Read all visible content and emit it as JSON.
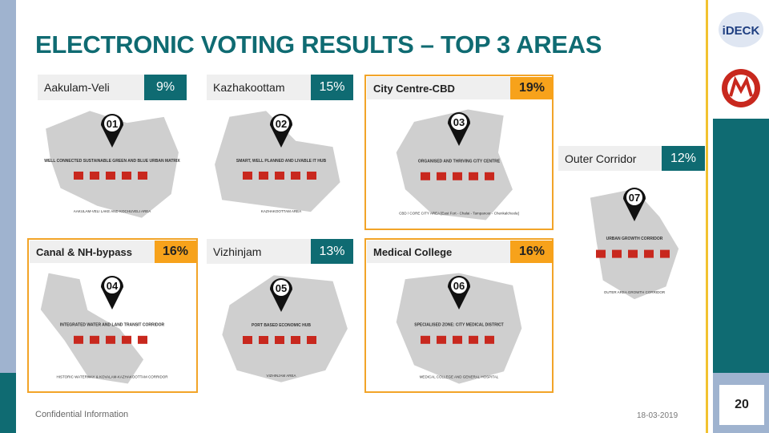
{
  "header": {
    "title": "ELECTRONIC VOTING RESULTS – TOP 3 AREAS",
    "logo": "iDECK"
  },
  "cards": [
    {
      "label": "Aakulam-Veli",
      "percent": "9%",
      "number": "01",
      "caption": "WELL CONNECTED SUSTAINABLE GREEN AND BLUE URBAN MATRIX",
      "area": "AAKULAM-VELI LAKE AND KOCHUVELI AREA"
    },
    {
      "label": "Kazhakoottam",
      "percent": "15%",
      "number": "02",
      "caption": "SMART, WELL PLANNED AND LIVABLE IT HUB",
      "area": "KAZHAKOOTTAM AREA"
    },
    {
      "label": "City Centre-CBD",
      "percent": "19%",
      "number": "03",
      "caption": "ORGANISED AND THRIVING CITY CENTRE",
      "area": "CBD / CORE CITY AREA [East Fort - Chalai - Tampanoor - Chenkalchoola]"
    },
    {
      "label": "Outer Corridor",
      "percent": "12%",
      "number": "07",
      "caption": "URBAN GROWTH CORRIDOR",
      "area": "OUTER AREA GROWTH CORRIDOR"
    },
    {
      "label": "Canal & NH-bypass",
      "percent": "16%",
      "number": "04",
      "caption": "INTEGRATED WATER AND LAND TRANSIT CORRIDOR",
      "area": "HISTORIC WATERWAY & KOVALAM-KAZHAKOOTTAM CORRIDOR"
    },
    {
      "label": "Vizhinjam",
      "percent": "13%",
      "number": "05",
      "caption": "PORT BASED ECONOMIC HUB",
      "area": "VIZHINJAM AREA"
    },
    {
      "label": "Medical College",
      "percent": "16%",
      "number": "06",
      "caption": "SPECIALISED ZONE: CITY MEDICAL DISTRICT",
      "area": "MEDICAL COLLEGE AND GENERAL HOSPITAL"
    }
  ],
  "footer": {
    "note": "Confidential Information",
    "date": "18-03-2019",
    "page": "20"
  }
}
